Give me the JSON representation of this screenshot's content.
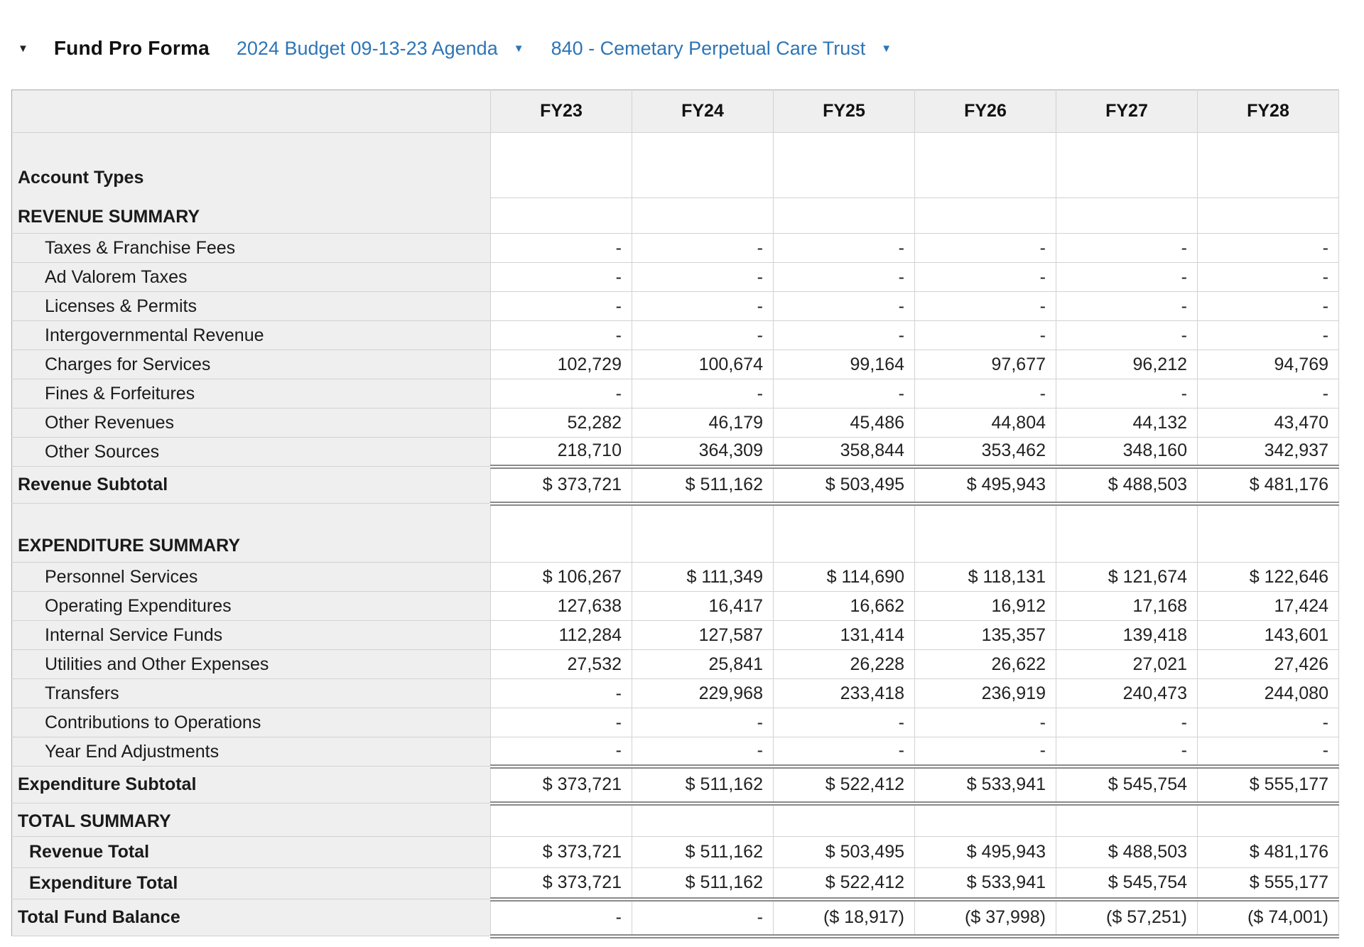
{
  "header": {
    "collapse_icon": "▼",
    "title": "Fund Pro Forma",
    "budget_dropdown": {
      "label": "2024 Budget 09-13-23 Agenda",
      "icon": "▼"
    },
    "fund_dropdown": {
      "label": "840 - Cemetary Perpetual Care Trust",
      "icon": "▼"
    }
  },
  "colors": {
    "accent_blue": "#2e75b6",
    "header_gray": "#efefef",
    "grid_line": "#d2d2d2",
    "outer_border": "#a9a9a9",
    "double_rule": "#8a8a8a"
  },
  "table": {
    "year_headers": [
      "FY23",
      "FY24",
      "FY25",
      "FY26",
      "FY27",
      "FY28"
    ],
    "rows": [
      {
        "kind": "section-start",
        "label": "Account Types",
        "values": [
          "",
          "",
          "",
          "",
          "",
          ""
        ]
      },
      {
        "kind": "section-title",
        "label": "REVENUE SUMMARY",
        "values": [
          "",
          "",
          "",
          "",
          "",
          ""
        ]
      },
      {
        "kind": "item",
        "label": "Taxes & Franchise Fees",
        "values": [
          "-",
          "-",
          "-",
          "-",
          "-",
          "-"
        ]
      },
      {
        "kind": "item",
        "label": "Ad Valorem Taxes",
        "values": [
          "-",
          "-",
          "-",
          "-",
          "-",
          "-"
        ]
      },
      {
        "kind": "item",
        "label": "Licenses & Permits",
        "values": [
          "-",
          "-",
          "-",
          "-",
          "-",
          "-"
        ]
      },
      {
        "kind": "item",
        "label": "Intergovernmental Revenue",
        "values": [
          "-",
          "-",
          "-",
          "-",
          "-",
          "-"
        ]
      },
      {
        "kind": "item",
        "label": "Charges for Services",
        "values": [
          "102,729",
          "100,674",
          "99,164",
          "97,677",
          "96,212",
          "94,769"
        ]
      },
      {
        "kind": "item",
        "label": "Fines & Forfeitures",
        "values": [
          "-",
          "-",
          "-",
          "-",
          "-",
          "-"
        ]
      },
      {
        "kind": "item",
        "label": "Other Revenues",
        "values": [
          "52,282",
          "46,179",
          "45,486",
          "44,804",
          "44,132",
          "43,470"
        ]
      },
      {
        "kind": "item",
        "label": "Other Sources",
        "values": [
          "218,710",
          "364,309",
          "358,844",
          "353,462",
          "348,160",
          "342,937"
        ]
      },
      {
        "kind": "subtotal",
        "label": "Revenue Subtotal",
        "values": [
          "$ 373,721",
          "$ 511,162",
          "$ 503,495",
          "$ 495,943",
          "$ 488,503",
          "$ 481,176"
        ]
      },
      {
        "kind": "section-break",
        "label": "EXPENDITURE SUMMARY",
        "values": [
          "",
          "",
          "",
          "",
          "",
          ""
        ]
      },
      {
        "kind": "item",
        "label": "Personnel Services",
        "values": [
          "$ 106,267",
          "$ 111,349",
          "$ 114,690",
          "$ 118,131",
          "$ 121,674",
          "$ 122,646"
        ]
      },
      {
        "kind": "item",
        "label": "Operating Expenditures",
        "values": [
          "127,638",
          "16,417",
          "16,662",
          "16,912",
          "17,168",
          "17,424"
        ]
      },
      {
        "kind": "item",
        "label": "Internal Service Funds",
        "values": [
          "112,284",
          "127,587",
          "131,414",
          "135,357",
          "139,418",
          "143,601"
        ]
      },
      {
        "kind": "item",
        "label": "Utilities and Other Expenses",
        "values": [
          "27,532",
          "25,841",
          "26,228",
          "26,622",
          "27,021",
          "27,426"
        ]
      },
      {
        "kind": "item",
        "label": "Transfers",
        "values": [
          "-",
          "229,968",
          "233,418",
          "236,919",
          "240,473",
          "244,080"
        ]
      },
      {
        "kind": "item",
        "label": "Contributions to Operations",
        "values": [
          "-",
          "-",
          "-",
          "-",
          "-",
          "-"
        ]
      },
      {
        "kind": "item",
        "label": "Year End Adjustments",
        "values": [
          "-",
          "-",
          "-",
          "-",
          "-",
          "-"
        ]
      },
      {
        "kind": "subtotal",
        "label": "Expenditure Subtotal",
        "values": [
          "$ 373,721",
          "$ 511,162",
          "$ 522,412",
          "$ 533,941",
          "$ 545,754",
          "$ 555,177"
        ]
      },
      {
        "kind": "section-break-short",
        "label": "TOTAL SUMMARY",
        "values": [
          "",
          "",
          "",
          "",
          "",
          ""
        ]
      },
      {
        "kind": "total-item",
        "label": "Revenue Total",
        "values": [
          "$ 373,721",
          "$ 511,162",
          "$ 503,495",
          "$ 495,943",
          "$ 488,503",
          "$ 481,176"
        ]
      },
      {
        "kind": "total-item",
        "label": "Expenditure Total",
        "values": [
          "$ 373,721",
          "$ 511,162",
          "$ 522,412",
          "$ 533,941",
          "$ 545,754",
          "$ 555,177"
        ]
      },
      {
        "kind": "grand-total",
        "label": "Total Fund Balance",
        "values": [
          "-",
          "-",
          "($ 18,917)",
          "($ 37,998)",
          "($ 57,251)",
          "($ 74,001)"
        ]
      }
    ]
  }
}
